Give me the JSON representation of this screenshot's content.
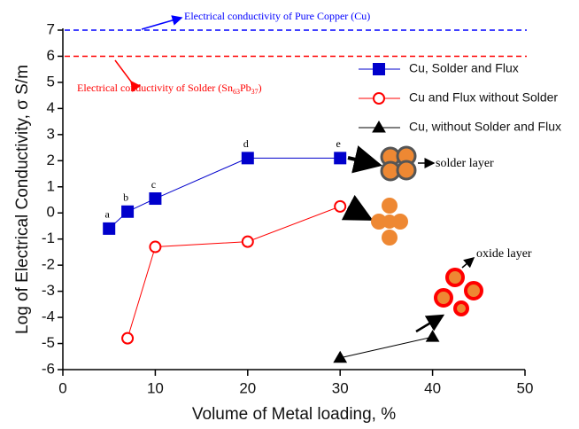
{
  "chart_data": {
    "type": "line",
    "x_label": "Volume of Metal loading, %",
    "y_label": "Log of Electrical Conductivity, σ S/m",
    "xlim": [
      0,
      50
    ],
    "xticks": [
      0,
      10,
      20,
      30,
      40,
      50
    ],
    "ylim": [
      -6,
      7
    ],
    "yticks": [
      -6,
      -5,
      -4,
      -3,
      -2,
      -1,
      0,
      1,
      2,
      3,
      4,
      5,
      6,
      7
    ],
    "legend": "upper right",
    "series": [
      {
        "name": "Cu, Solder and Flux",
        "color": "#0000cc",
        "marker": "square",
        "filled": true,
        "x": [
          5,
          7,
          10,
          20,
          30
        ],
        "values": [
          -0.6,
          0.05,
          0.55,
          2.1,
          2.1
        ],
        "point_labels": [
          "a",
          "b",
          "c",
          "d",
          "e"
        ]
      },
      {
        "name": "Cu and Flux without Solder",
        "color": "#ff0000",
        "marker": "circle",
        "filled": false,
        "x": [
          7,
          10,
          20,
          30
        ],
        "values": [
          -4.8,
          -1.3,
          -1.1,
          0.25
        ]
      },
      {
        "name": "Cu, without Solder and Flux",
        "color": "#000000",
        "marker": "triangle",
        "filled": true,
        "x": [
          30,
          40
        ],
        "values": [
          -5.55,
          -4.75
        ]
      }
    ],
    "reference_lines": [
      {
        "value": 7,
        "color": "#0000ff",
        "label_parts": [
          "Electrical conductivity of Pure Copper (Cu)"
        ]
      },
      {
        "value": 6,
        "color": "#ff0000",
        "label_parts": [
          "Electrical conductivity of Solder (Sn",
          "63",
          "Pb",
          "37",
          ")"
        ]
      }
    ],
    "annotations": [
      "solder layer",
      "oxide layer"
    ]
  }
}
